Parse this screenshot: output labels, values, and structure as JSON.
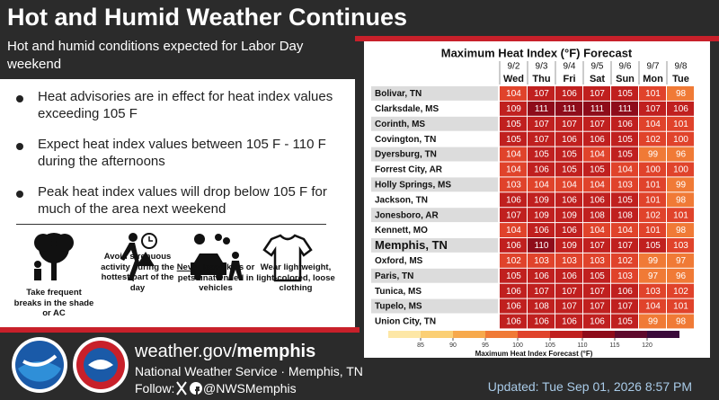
{
  "header": {
    "title": "Hot and Humid Weather Continues",
    "subtitle": "Hot and humid conditions expected for Labor Day weekend"
  },
  "bullets": [
    "Heat advisories are in effect for heat index values exceeding 105 F",
    "Expect heat index values between 105 F - 110 F  during the afternoons",
    "Peak heat index values will drop below 105 F for much of the area next weekend"
  ],
  "tips": [
    {
      "caption": "Take frequent breaks in the shade or AC"
    },
    {
      "caption": "Avoid strenuous activity during the hottest part of the day"
    },
    {
      "emphasis": "Never",
      "caption": "leave kids or pets unattended in vehicles"
    },
    {
      "caption": "Wear lightweight, light-colored, loose clothing"
    }
  ],
  "table": {
    "title": "Maximum Heat Index (°F) Forecast",
    "columns": [
      {
        "date": "9/2",
        "day": "Wed"
      },
      {
        "date": "9/3",
        "day": "Thu"
      },
      {
        "date": "9/4",
        "day": "Fri"
      },
      {
        "date": "9/5",
        "day": "Sat"
      },
      {
        "date": "9/6",
        "day": "Sun"
      },
      {
        "date": "9/7",
        "day": "Mon"
      },
      {
        "date": "9/8",
        "day": "Tue"
      }
    ],
    "rows": [
      {
        "location": "Bolivar, TN",
        "values": [
          104,
          107,
          106,
          107,
          105,
          101,
          98
        ]
      },
      {
        "location": "Clarksdale, MS",
        "values": [
          109,
          111,
          111,
          111,
          111,
          107,
          106
        ]
      },
      {
        "location": "Corinth, MS",
        "values": [
          105,
          107,
          107,
          107,
          106,
          104,
          101
        ]
      },
      {
        "location": "Covington, TN",
        "values": [
          105,
          107,
          106,
          106,
          105,
          102,
          100
        ]
      },
      {
        "location": "Dyersburg, TN",
        "values": [
          104,
          105,
          105,
          104,
          105,
          99,
          96
        ]
      },
      {
        "location": "Forrest City, AR",
        "values": [
          104,
          106,
          105,
          105,
          104,
          100,
          100
        ]
      },
      {
        "location": "Holly Springs, MS",
        "values": [
          103,
          104,
          104,
          104,
          103,
          101,
          99
        ]
      },
      {
        "location": "Jackson, TN",
        "values": [
          106,
          109,
          106,
          106,
          105,
          101,
          98
        ]
      },
      {
        "location": "Jonesboro, AR",
        "values": [
          107,
          109,
          109,
          108,
          108,
          102,
          101
        ]
      },
      {
        "location": "Kennett, MO",
        "values": [
          104,
          106,
          106,
          104,
          104,
          101,
          98
        ]
      },
      {
        "location": "Memphis, TN",
        "values": [
          106,
          110,
          109,
          107,
          107,
          105,
          103
        ]
      },
      {
        "location": "Oxford, MS",
        "values": [
          102,
          103,
          103,
          103,
          102,
          99,
          97
        ]
      },
      {
        "location": "Paris, TN",
        "values": [
          105,
          106,
          106,
          105,
          103,
          97,
          96
        ]
      },
      {
        "location": "Tunica, MS",
        "values": [
          106,
          107,
          107,
          107,
          106,
          103,
          102
        ]
      },
      {
        "location": "Tupelo, MS",
        "values": [
          106,
          108,
          107,
          107,
          107,
          104,
          101
        ]
      },
      {
        "location": "Union City, TN",
        "values": [
          106,
          106,
          106,
          106,
          105,
          99,
          98
        ]
      }
    ],
    "legend": {
      "title": "Maximum Heat Index Forecast (°F)",
      "ticks": [
        85,
        90,
        95,
        100,
        105,
        110,
        115,
        120
      ],
      "colors": [
        "#fde7a6",
        "#fbcf74",
        "#f7a94c",
        "#f07a36",
        "#e0432b",
        "#c0201f",
        "#8e0c1a",
        "#5e0a2c",
        "#3a0a3a"
      ]
    }
  },
  "footer": {
    "site_prefix": "weather.gov/",
    "site_office": "memphis",
    "office": "National Weather Service · Memphis, TN",
    "follow": "Follow:",
    "handle": "@NWSMemphis",
    "updated": "Updated: Tue Sep 01, 2026 8:57 PM"
  }
}
